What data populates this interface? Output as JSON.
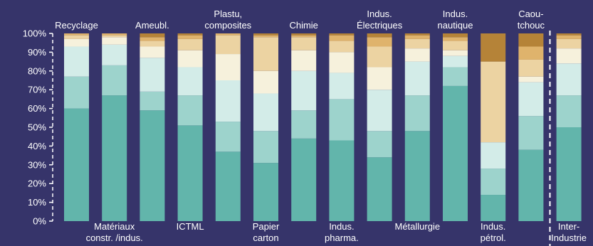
{
  "chart_data": {
    "type": "bar",
    "stacked": true,
    "ylim": [
      0,
      100
    ],
    "ytick_labels": [
      "0%",
      "10%",
      "20%",
      "30%",
      "40%",
      "50%",
      "60%",
      "70%",
      "80%",
      "90%",
      "100%"
    ],
    "grid": false,
    "categories": [
      {
        "lines": [
          "Recyclage"
        ],
        "pos": "top"
      },
      {
        "lines": [
          "Matériaux",
          "constr. /indus."
        ],
        "pos": "bottom"
      },
      {
        "lines": [
          "Ameubl."
        ],
        "pos": "top"
      },
      {
        "lines": [
          "ICTML"
        ],
        "pos": "bottom"
      },
      {
        "lines": [
          "Plastu,",
          "composites"
        ],
        "pos": "top"
      },
      {
        "lines": [
          "Papier",
          "carton"
        ],
        "pos": "bottom"
      },
      {
        "lines": [
          "Chimie"
        ],
        "pos": "top"
      },
      {
        "lines": [
          "Indus.",
          "pharma."
        ],
        "pos": "bottom"
      },
      {
        "lines": [
          "Indus.",
          "Électriques"
        ],
        "pos": "top"
      },
      {
        "lines": [
          "Métallurgie"
        ],
        "pos": "bottom"
      },
      {
        "lines": [
          "Indus.",
          "nautique"
        ],
        "pos": "top"
      },
      {
        "lines": [
          "Indus.",
          "pétrol."
        ],
        "pos": "bottom"
      },
      {
        "lines": [
          "Caou-",
          "tchouc"
        ],
        "pos": "top"
      },
      {
        "lines": [
          "Inter-",
          "Industrie"
        ],
        "pos": "bottom"
      }
    ],
    "colors": [
      "#62b5ab",
      "#9dd3cc",
      "#d3ece8",
      "#f6f1dc",
      "#ecd3a2",
      "#dfb36c",
      "#b58338"
    ],
    "series": [
      {
        "values": [
          60,
          67,
          59,
          51,
          37,
          31,
          44,
          43,
          34,
          48,
          72,
          14,
          38,
          50
        ]
      },
      {
        "values": [
          17,
          16,
          10,
          16,
          16,
          17,
          15,
          22,
          14,
          19,
          10,
          14,
          18,
          17
        ]
      },
      {
        "values": [
          16,
          11,
          18,
          15,
          22,
          20,
          21,
          14,
          22,
          18,
          6,
          14,
          18,
          17
        ]
      },
      {
        "values": [
          4,
          4,
          6,
          9,
          14,
          12,
          11,
          11,
          12,
          7,
          3,
          0,
          3,
          8
        ]
      },
      {
        "values": [
          2,
          1,
          3,
          6,
          10,
          18,
          7,
          6,
          11,
          5,
          5,
          43,
          9,
          5
        ]
      },
      {
        "values": [
          1,
          1,
          2,
          2,
          1,
          1,
          1,
          3,
          5,
          2,
          2,
          0,
          7,
          2
        ]
      },
      {
        "values": [
          0,
          0,
          2,
          1,
          0,
          1,
          1,
          1,
          2,
          1,
          2,
          15,
          7,
          1
        ]
      }
    ]
  }
}
